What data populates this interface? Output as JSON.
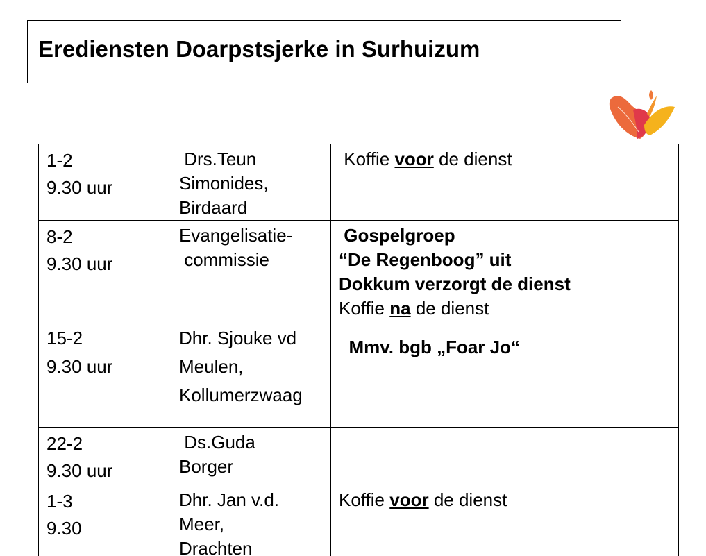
{
  "title": "Erediensten Doarpstsjerke in Surhuizum",
  "logo": {
    "name": "dove-flame-logo",
    "colors": [
      "#e8463c",
      "#f07a3a",
      "#f5b21c"
    ]
  },
  "rows": [
    {
      "date": [
        "1-2",
        "9.30 uur"
      ],
      "speaker": [
        " Drs.Teun",
        "Simonides,",
        "Birdaard"
      ],
      "notes": [
        [
          {
            "t": " Koffie "
          },
          {
            "t": "voor",
            "s": "b u"
          },
          {
            "t": " de dienst"
          }
        ]
      ]
    },
    {
      "date": [
        "8-2",
        "9.30 uur"
      ],
      "speaker": [
        "Evangelisatie-",
        " commissie"
      ],
      "notes": [
        [
          {
            "t": " Gospelgroep",
            "s": "b"
          }
        ],
        [
          {
            "t": "“De Regenboog” uit",
            "s": "b"
          }
        ],
        [
          {
            "t": "Dokkum verzorgt de dienst",
            "s": "b"
          }
        ],
        [
          {
            "t": "Koffie "
          },
          {
            "t": "na",
            "s": "b u"
          },
          {
            "t": " de dienst"
          }
        ]
      ]
    },
    {
      "date": [
        "15-2",
        "9.30 uur"
      ],
      "speaker": [
        "Dhr. Sjouke vd",
        "Meulen,",
        "Kollumerzwaag"
      ],
      "notes": [
        [
          {
            "t": ""
          }
        ],
        [
          {
            "t": "  Mmv. bgb „Foar Jo“",
            "s": "b"
          }
        ]
      ]
    },
    {
      "date": [
        "22-2",
        "9.30 uur"
      ],
      "speaker": [
        " Ds.Guda",
        "Borger"
      ],
      "notes": []
    },
    {
      "date": [
        "1-3",
        "9.30"
      ],
      "speaker": [
        "Dhr. Jan v.d.",
        "Meer,",
        "Drachten"
      ],
      "notes": [
        [
          {
            "t": "Koffie "
          },
          {
            "t": "voor",
            "s": "b u"
          },
          {
            "t": " de dienst"
          }
        ]
      ]
    }
  ]
}
